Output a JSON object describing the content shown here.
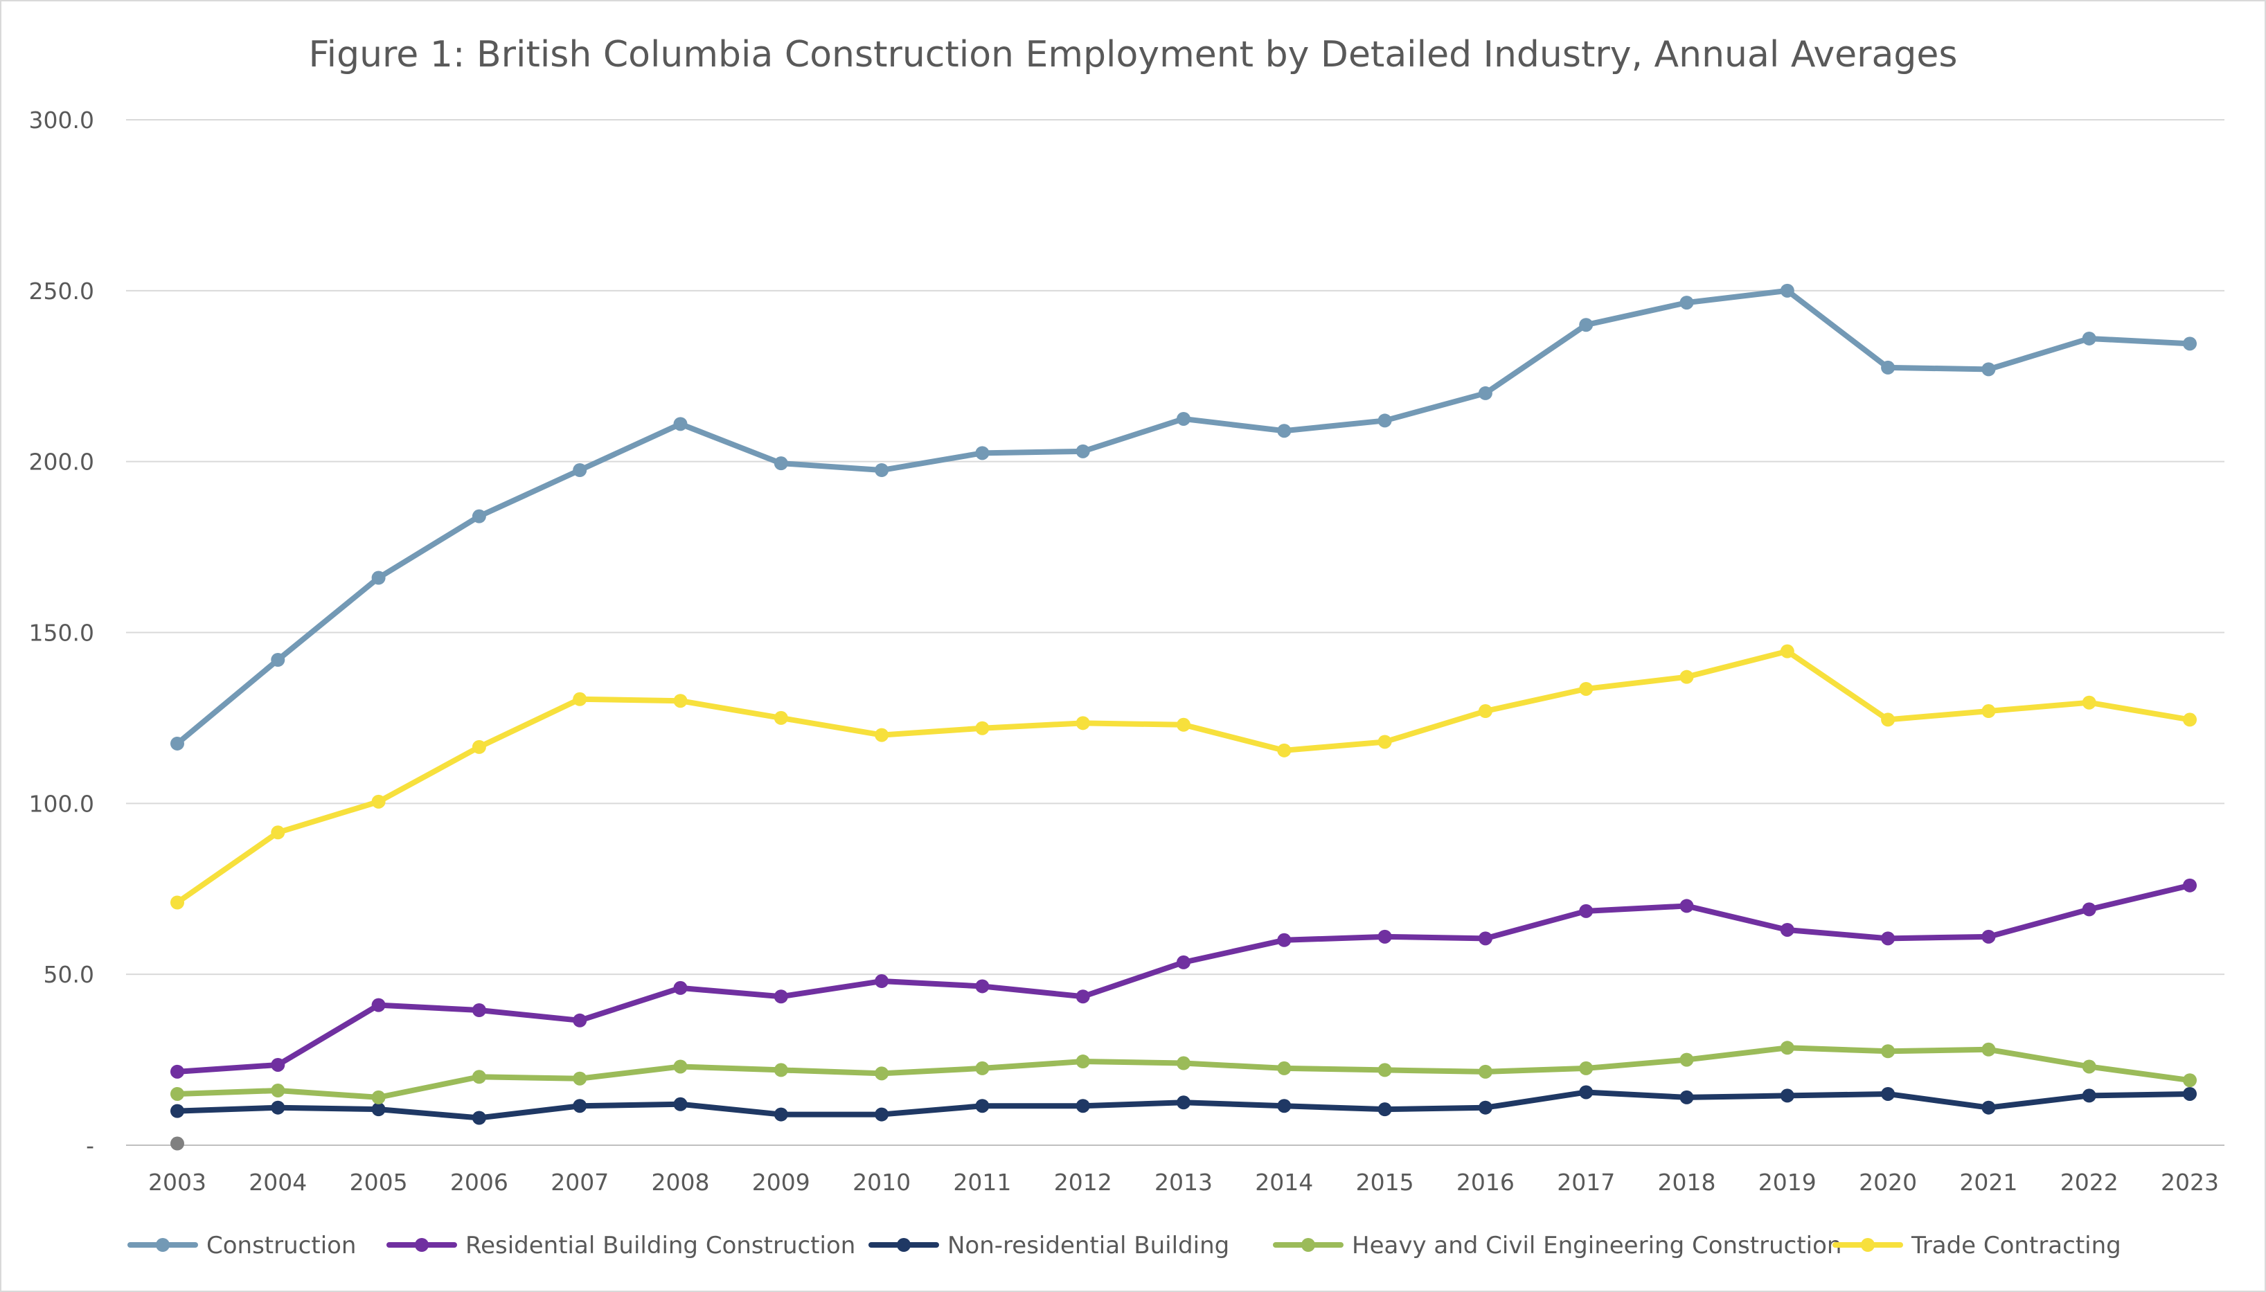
{
  "chart_data": {
    "type": "line",
    "title": "Figure 1: British Columbia Construction Employment by Detailed Industry, Annual Averages",
    "xlabel": "",
    "ylabel": "",
    "categories": [
      "2003",
      "2004",
      "2005",
      "2006",
      "2007",
      "2008",
      "2009",
      "2010",
      "2011",
      "2012",
      "2013",
      "2014",
      "2015",
      "2016",
      "2017",
      "2018",
      "2019",
      "2020",
      "2021",
      "2022",
      "2023"
    ],
    "ylim": [
      0,
      300
    ],
    "y_ticks": [
      {
        "value": 0,
        "label": "-"
      },
      {
        "value": 50,
        "label": "50.0"
      },
      {
        "value": 100,
        "label": "100.0"
      },
      {
        "value": 150,
        "label": "150.0"
      },
      {
        "value": 200,
        "label": "200.0"
      },
      {
        "value": 250,
        "label": "250.0"
      },
      {
        "value": 300,
        "label": "300.0"
      }
    ],
    "grid": true,
    "legend_position": "bottom",
    "series": [
      {
        "name": "Construction",
        "color": "#7399b5",
        "values": [
          117.5,
          142,
          166,
          184,
          197.5,
          211,
          199.5,
          197.5,
          202.5,
          203,
          212.5,
          209,
          212,
          220,
          240,
          246.5,
          250,
          227.5,
          227,
          236,
          234.5
        ]
      },
      {
        "name": "Residential Building Construction",
        "color": "#7030a0",
        "values": [
          21.5,
          23.5,
          41,
          39.5,
          36.5,
          46,
          43.5,
          48,
          46.5,
          43.5,
          53.5,
          60,
          61,
          60.5,
          68.5,
          70,
          63,
          60.5,
          61,
          69,
          76
        ]
      },
      {
        "name": "Non-residential Building",
        "color": "#1f3864",
        "values": [
          10,
          11,
          10.5,
          8,
          11.5,
          12,
          9,
          9,
          11.5,
          11.5,
          12.5,
          11.5,
          10.5,
          11,
          15.5,
          14,
          14.5,
          15,
          11,
          14.5,
          15
        ]
      },
      {
        "name": "Heavy and Civil Engineering Construction",
        "color": "#9bbb59",
        "values": [
          15,
          16,
          14,
          20,
          19.5,
          23,
          22,
          21,
          22.5,
          24.5,
          24,
          22.5,
          22,
          21.5,
          22.5,
          25,
          28.5,
          27.5,
          28,
          23,
          19
        ]
      },
      {
        "name": "Trade Contracting",
        "color": "#f7e03c",
        "values": [
          71,
          91.5,
          100.5,
          116.5,
          130.5,
          130,
          125,
          120,
          122,
          123.5,
          123,
          115.5,
          118,
          127,
          133.5,
          137,
          144.5,
          124.5,
          127,
          129.5,
          124.5
        ]
      }
    ],
    "extra_point": {
      "x": "2003",
      "value": 0.5,
      "color": "#808080"
    }
  }
}
